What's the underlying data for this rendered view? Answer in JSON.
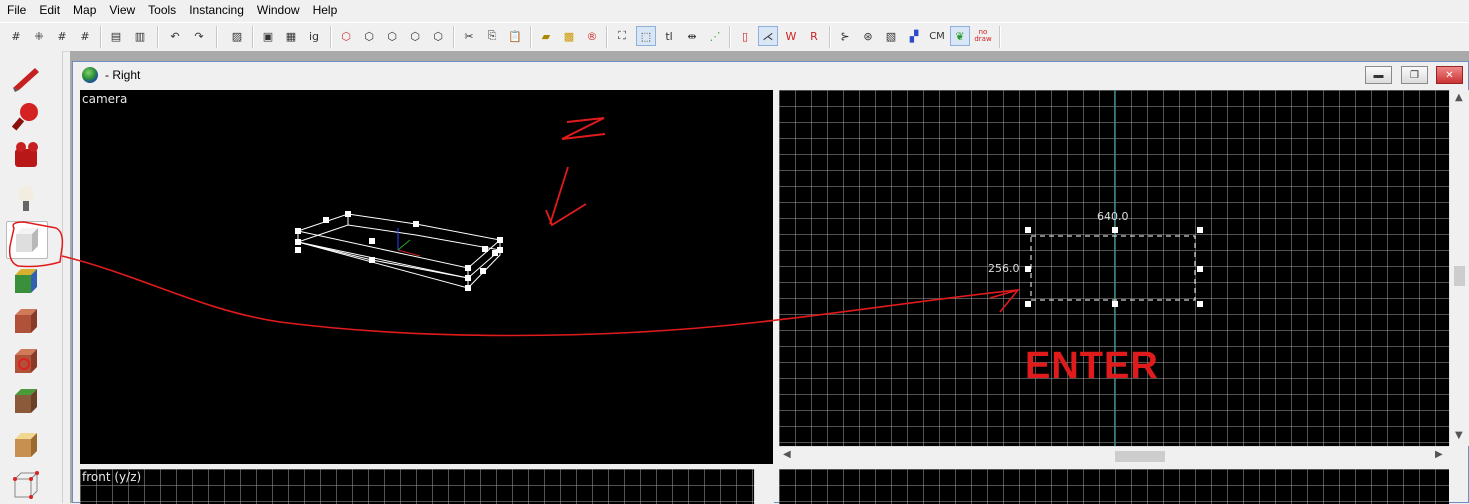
{
  "menu": [
    "File",
    "Edit",
    "Map",
    "View",
    "Tools",
    "Instancing",
    "Window",
    "Help"
  ],
  "toolbar": {
    "text_buttons": {
      "ig": "ig",
      "tl": "tl",
      "cm": "CM",
      "nodraw": "no draw"
    }
  },
  "window": {
    "title": "- Right",
    "controls": {
      "minimize": "▬",
      "restore": "❐",
      "close": "✕"
    }
  },
  "viewports": {
    "camera_label": "camera",
    "front_label": "front (y/z)"
  },
  "selection": {
    "width_label": "640.0",
    "height_label": "256.0"
  },
  "annotations": {
    "number": "2",
    "enter": "ENTER",
    "color": "#e01b1b"
  },
  "sidebar_tools": [
    {
      "name": "selection-tool-icon",
      "color": "#d23030"
    },
    {
      "name": "magnify-tool-icon",
      "color": "#c81e1e"
    },
    {
      "name": "camera-tool-icon",
      "color": "#b51a1a"
    },
    {
      "name": "entity-tool-icon",
      "color": "#e8e0c8"
    },
    {
      "name": "block-tool-icon",
      "color": "#d9d9d9"
    },
    {
      "name": "texture-application-icon",
      "color": "#3a8f3a"
    },
    {
      "name": "apply-texture-icon",
      "color": "#b0523a"
    },
    {
      "name": "decal-tool-icon",
      "color": "#c23a2a"
    },
    {
      "name": "overlay-tool-icon",
      "color": "#7a9a4a"
    },
    {
      "name": "clip-tool-icon",
      "color": "#e0c070"
    },
    {
      "name": "vertex-tool-icon",
      "color": "#d0d0d0"
    }
  ]
}
